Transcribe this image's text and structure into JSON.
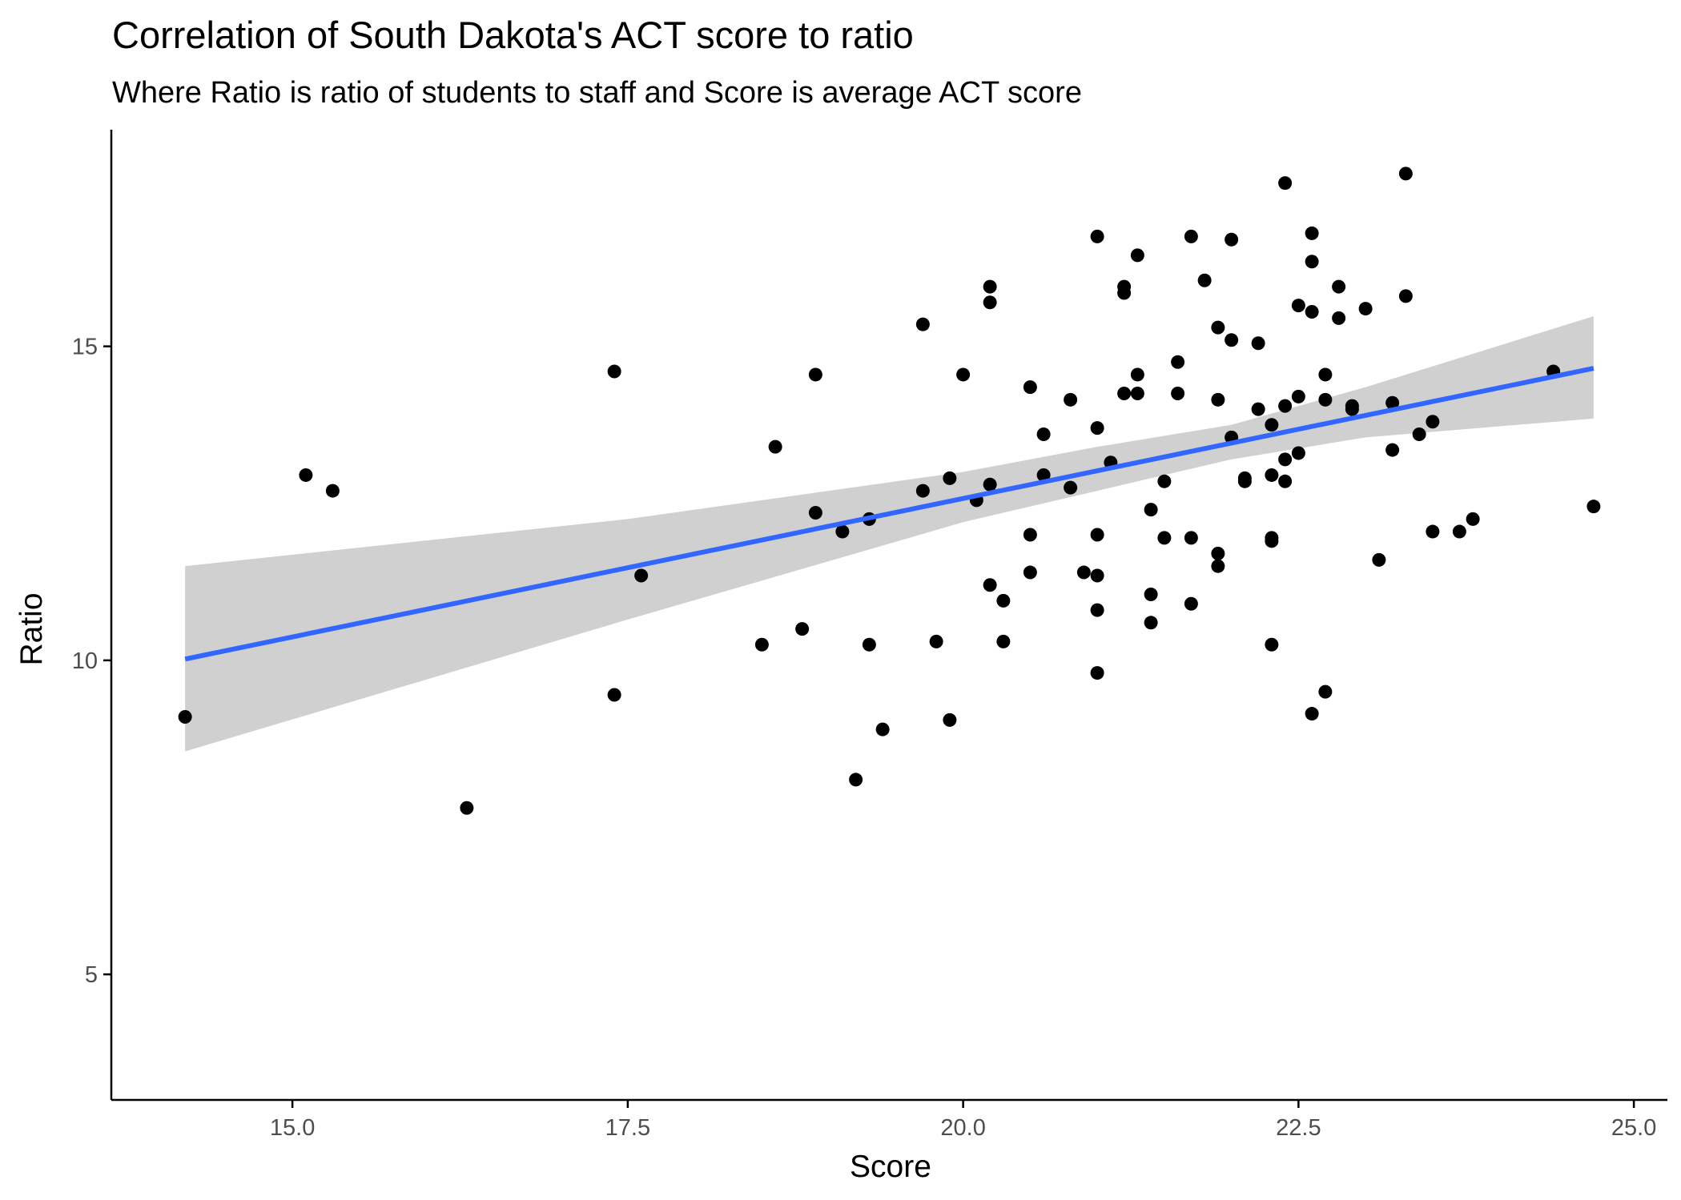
{
  "chart_data": {
    "type": "scatter",
    "title": "Correlation of South Dakota's ACT score to ratio",
    "subtitle": "Where Ratio is ratio of students to staff and Score is average ACT score",
    "xlabel": "Score",
    "ylabel": "Ratio",
    "xlim": [
      13.65,
      25.25
    ],
    "ylim": [
      3.0,
      18.45
    ],
    "x_ticks": [
      15.0,
      17.5,
      20.0,
      22.5,
      25.0
    ],
    "x_tick_labels": [
      "15.0",
      "17.5",
      "20.0",
      "22.5",
      "25.0"
    ],
    "y_ticks": [
      5,
      10,
      15
    ],
    "y_tick_labels": [
      "5",
      "10",
      "15"
    ],
    "grid": false,
    "point_color": "#000000",
    "fit_line_color": "#3366ff",
    "confidence_band_color": "#d0d0d0",
    "points": [
      [
        14.2,
        9.1
      ],
      [
        15.1,
        12.95
      ],
      [
        15.3,
        12.7
      ],
      [
        16.3,
        7.65
      ],
      [
        17.4,
        14.6
      ],
      [
        17.4,
        9.45
      ],
      [
        17.6,
        11.35
      ],
      [
        18.5,
        10.25
      ],
      [
        18.6,
        13.4
      ],
      [
        18.8,
        10.5
      ],
      [
        18.9,
        14.55
      ],
      [
        18.9,
        12.35
      ],
      [
        19.1,
        12.05
      ],
      [
        19.2,
        8.1
      ],
      [
        19.3,
        12.25
      ],
      [
        19.3,
        10.25
      ],
      [
        19.4,
        8.9
      ],
      [
        19.7,
        15.35
      ],
      [
        19.7,
        12.7
      ],
      [
        19.8,
        10.3
      ],
      [
        19.9,
        12.9
      ],
      [
        19.9,
        9.05
      ],
      [
        20.0,
        14.55
      ],
      [
        20.1,
        12.55
      ],
      [
        20.2,
        15.95
      ],
      [
        20.2,
        15.7
      ],
      [
        20.2,
        12.8
      ],
      [
        20.2,
        11.2
      ],
      [
        20.3,
        10.95
      ],
      [
        20.3,
        10.3
      ],
      [
        20.5,
        14.35
      ],
      [
        20.5,
        12.0
      ],
      [
        20.5,
        11.4
      ],
      [
        20.6,
        13.6
      ],
      [
        20.6,
        12.95
      ],
      [
        20.8,
        14.15
      ],
      [
        20.8,
        12.75
      ],
      [
        20.9,
        11.4
      ],
      [
        21.0,
        16.75
      ],
      [
        21.0,
        13.7
      ],
      [
        21.0,
        12.0
      ],
      [
        21.0,
        11.35
      ],
      [
        21.0,
        10.8
      ],
      [
        21.0,
        9.8
      ],
      [
        21.1,
        13.15
      ],
      [
        21.2,
        15.95
      ],
      [
        21.2,
        15.85
      ],
      [
        21.2,
        14.25
      ],
      [
        21.3,
        16.45
      ],
      [
        21.3,
        14.55
      ],
      [
        21.3,
        14.25
      ],
      [
        21.4,
        12.4
      ],
      [
        21.4,
        11.05
      ],
      [
        21.4,
        10.6
      ],
      [
        21.5,
        12.85
      ],
      [
        21.5,
        11.95
      ],
      [
        21.6,
        14.75
      ],
      [
        21.6,
        14.25
      ],
      [
        21.7,
        16.75
      ],
      [
        21.7,
        11.95
      ],
      [
        21.7,
        10.9
      ],
      [
        21.8,
        16.05
      ],
      [
        21.9,
        15.3
      ],
      [
        21.9,
        14.15
      ],
      [
        21.9,
        11.7
      ],
      [
        21.9,
        11.5
      ],
      [
        22.0,
        16.7
      ],
      [
        22.0,
        15.1
      ],
      [
        22.0,
        13.55
      ],
      [
        22.1,
        12.9
      ],
      [
        22.1,
        12.85
      ],
      [
        22.2,
        15.05
      ],
      [
        22.2,
        14.0
      ],
      [
        22.3,
        13.75
      ],
      [
        22.3,
        12.95
      ],
      [
        22.3,
        11.95
      ],
      [
        22.3,
        11.9
      ],
      [
        22.3,
        10.25
      ],
      [
        22.4,
        17.6
      ],
      [
        22.4,
        14.05
      ],
      [
        22.4,
        13.2
      ],
      [
        22.4,
        12.85
      ],
      [
        22.5,
        15.65
      ],
      [
        22.5,
        14.2
      ],
      [
        22.5,
        13.3
      ],
      [
        22.6,
        16.8
      ],
      [
        22.6,
        16.35
      ],
      [
        22.6,
        15.55
      ],
      [
        22.6,
        9.15
      ],
      [
        22.7,
        14.55
      ],
      [
        22.7,
        14.15
      ],
      [
        22.7,
        9.5
      ],
      [
        22.8,
        15.95
      ],
      [
        22.8,
        15.45
      ],
      [
        22.9,
        14.05
      ],
      [
        22.9,
        14.0
      ],
      [
        23.0,
        15.6
      ],
      [
        23.1,
        11.6
      ],
      [
        23.2,
        14.1
      ],
      [
        23.2,
        13.35
      ],
      [
        23.3,
        17.75
      ],
      [
        23.3,
        15.8
      ],
      [
        23.4,
        13.6
      ],
      [
        23.5,
        13.8
      ],
      [
        23.5,
        12.05
      ],
      [
        23.7,
        12.05
      ],
      [
        23.8,
        12.25
      ],
      [
        24.4,
        14.6
      ],
      [
        24.7,
        12.45
      ]
    ],
    "fit_line": [
      [
        14.2,
        10.02
      ],
      [
        24.7,
        14.65
      ]
    ],
    "confidence_band": {
      "x": [
        14.2,
        17.5,
        20.0,
        21.0,
        22.0,
        23.0,
        24.7
      ],
      "lower": [
        8.55,
        10.65,
        12.2,
        12.7,
        13.2,
        13.55,
        13.85
      ],
      "upper": [
        11.5,
        12.25,
        13.0,
        13.4,
        13.75,
        14.35,
        15.48
      ]
    }
  }
}
